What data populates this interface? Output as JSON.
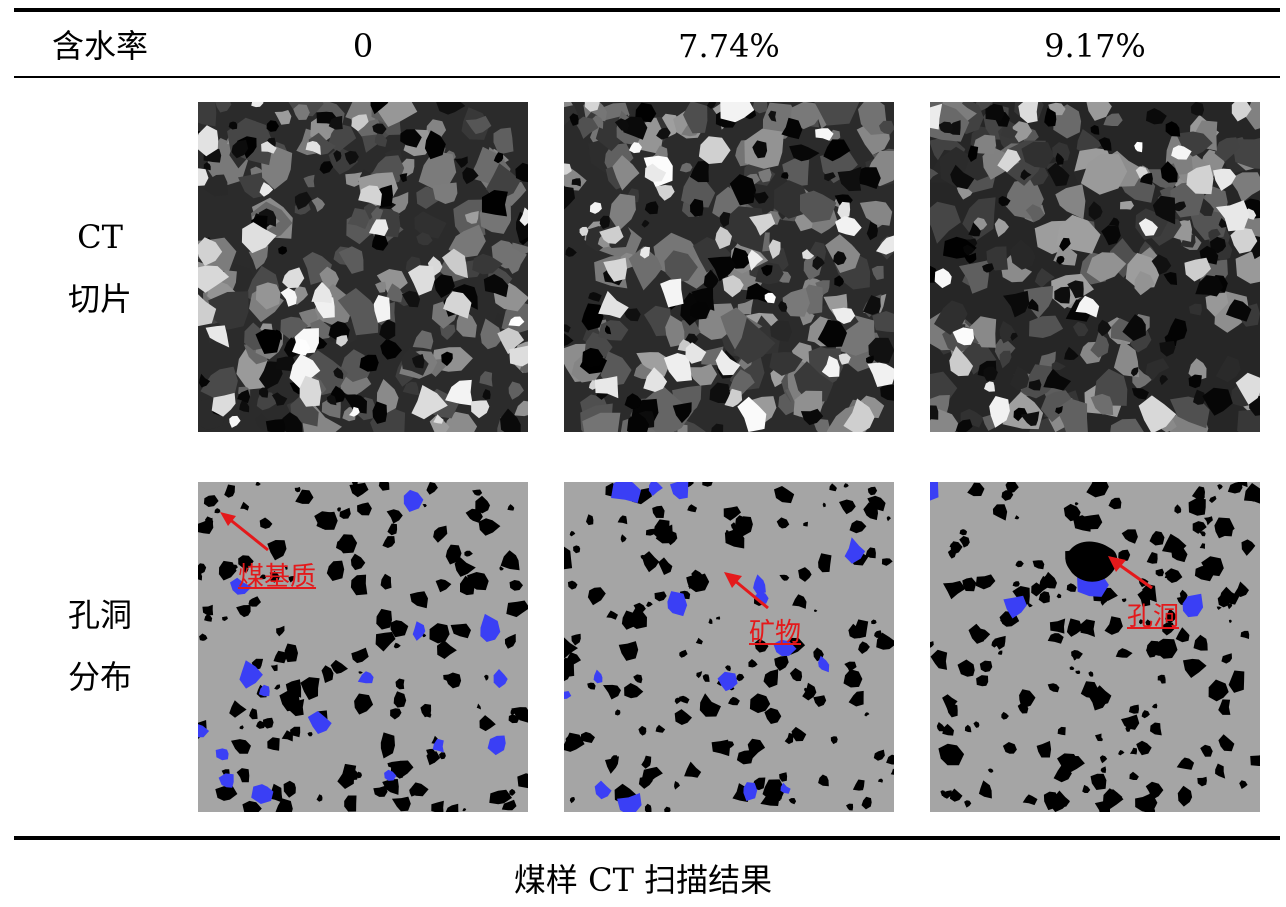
{
  "table": {
    "header": {
      "row_label": "含水率",
      "columns": [
        "0",
        "7.74%",
        "9.17%"
      ]
    },
    "rows": [
      {
        "label_line1": "CT",
        "label_line2": "切片"
      },
      {
        "label_line1": "孔洞",
        "label_line2": "分布"
      }
    ]
  },
  "annotations": {
    "coal_matrix": "煤基质",
    "mineral": "矿物",
    "pore": "孔洞"
  },
  "caption": "煤样 CT 扫描结果",
  "colors": {
    "mineral": "#3a3ff5",
    "pore": "#000000",
    "matrix": "#a5a5a5",
    "arrow": "#e4191b"
  }
}
